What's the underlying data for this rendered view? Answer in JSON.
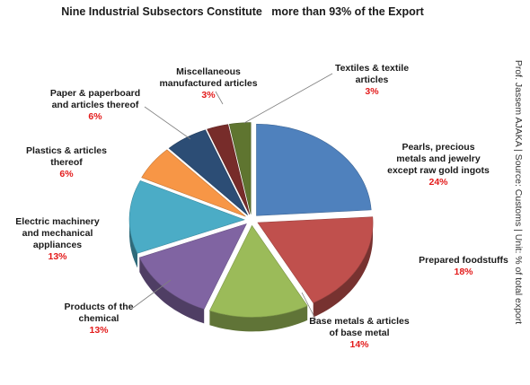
{
  "chart_data": {
    "type": "pie",
    "title": "Nine Industrial Subsectors Constitute   more than 93% of the Export",
    "note": "Prof. Jassem AJAKA | Source: Customs | Unit: % of total export",
    "slices": [
      {
        "label": "Pearls, precious\nmetals and jewelry\nexcept raw gold ingots",
        "value": 24,
        "value_label": "24%",
        "color": "#4f81bd"
      },
      {
        "label": "Prepared foodstuffs",
        "value": 18,
        "value_label": "18%",
        "color": "#c0504d"
      },
      {
        "label": "Base metals & articles\nof base metal",
        "value": 14,
        "value_label": "14%",
        "color": "#9bbb59"
      },
      {
        "label": "Products of the\nchemical",
        "value": 13,
        "value_label": "13%",
        "color": "#8064a2"
      },
      {
        "label": "Electric machinery\nand mechanical\nappliances",
        "value": 13,
        "value_label": "13%",
        "color": "#4bacc6"
      },
      {
        "label": "Plastics & articles\nthereof",
        "value": 6,
        "value_label": "6%",
        "color": "#f79646"
      },
      {
        "label": "Paper & paperboard\nand articles thereof",
        "value": 6,
        "value_label": "6%",
        "color": "#2c4d75"
      },
      {
        "label": "Miscellaneous\nmanufactured articles",
        "value": 3,
        "value_label": "3%",
        "color": "#772c2a"
      },
      {
        "label": "Textiles & textile\narticles",
        "value": 3,
        "value_label": "3%",
        "color": "#5f7530"
      }
    ],
    "legend": "none"
  }
}
